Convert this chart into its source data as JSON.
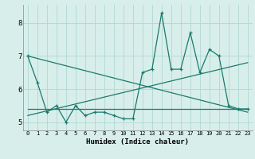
{
  "xlabel": "Humidex (Indice chaleur)",
  "x": [
    0,
    1,
    2,
    3,
    4,
    5,
    6,
    7,
    8,
    9,
    10,
    11,
    12,
    13,
    14,
    15,
    16,
    17,
    18,
    19,
    20,
    21,
    22,
    23
  ],
  "y_line": [
    7.0,
    6.2,
    5.3,
    5.5,
    5.0,
    5.5,
    5.2,
    5.3,
    5.3,
    5.2,
    5.1,
    5.1,
    6.5,
    6.6,
    8.3,
    6.6,
    6.6,
    7.7,
    6.5,
    7.2,
    7.0,
    5.5,
    5.4,
    5.4
  ],
  "y_trend_up_start": 5.2,
  "y_trend_up_end": 6.8,
  "y_trend_down_start": 7.0,
  "y_trend_down_end": 5.3,
  "y_flat": 5.4,
  "line_color": "#1a7a6e",
  "bg_color": "#d8eeea",
  "grid_color": "#b0d8d4",
  "ylim": [
    4.75,
    8.55
  ],
  "xlim": [
    -0.5,
    23.5
  ],
  "yticks": [
    5,
    6,
    7,
    8
  ],
  "xticks": [
    0,
    1,
    2,
    3,
    4,
    5,
    6,
    7,
    8,
    9,
    10,
    11,
    12,
    13,
    14,
    15,
    16,
    17,
    18,
    19,
    20,
    21,
    22,
    23
  ]
}
